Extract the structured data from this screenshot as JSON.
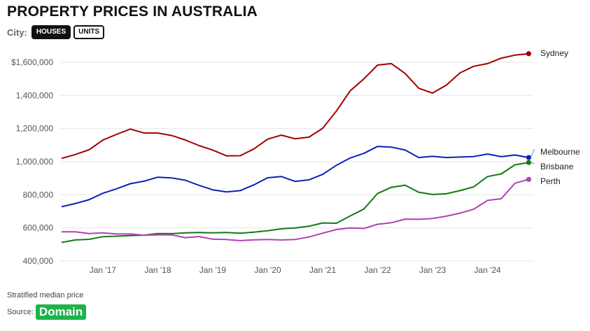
{
  "header": {
    "title": "PROPERTY PRICES IN AUSTRALIA",
    "city_label": "City:",
    "toggles": [
      {
        "label": "HOUSES",
        "active": true
      },
      {
        "label": "UNITS",
        "active": false
      }
    ]
  },
  "footer": {
    "note": "Stratified median price",
    "source_label": "Source:",
    "source_logo": "Domain"
  },
  "colors": {
    "Sydney": "#a10000",
    "Melbourne": "#0a22b8",
    "Brisbane": "#137a13",
    "Perth": "#b041b3",
    "logo": "#1db34a"
  },
  "chart_data": {
    "type": "line",
    "title": "PROPERTY PRICES IN AUSTRALIA",
    "xlabel": "",
    "ylabel": "",
    "note": "Stratified median price",
    "x_start": "2016-04",
    "x_step_months": 3,
    "xlim": [
      "2016-04",
      "2024-11"
    ],
    "ylim": [
      400000,
      1650000
    ],
    "y_ticks": [
      400000,
      600000,
      800000,
      1000000,
      1200000,
      1400000,
      1600000
    ],
    "y_tick_labels": [
      "400,000",
      "600,000",
      "800,000",
      "1,000,000",
      "1,200,000",
      "1,400,000",
      "$1,600,000"
    ],
    "x_tick_labels": [
      "Jan '17",
      "Jan '18",
      "Jan '19",
      "Jan '20",
      "Jan '21",
      "Jan '22",
      "Jan '23",
      "Jan '24"
    ],
    "x_tick_months": [
      "2017-01",
      "2018-01",
      "2019-01",
      "2020-01",
      "2021-01",
      "2022-01",
      "2023-01",
      "2024-01"
    ],
    "gridlines": true,
    "legend": "inline labels at line ends",
    "series": [
      {
        "name": "Sydney",
        "values": [
          1020000,
          1043000,
          1072000,
          1130000,
          1165000,
          1197000,
          1173000,
          1173000,
          1158000,
          1131000,
          1097000,
          1070000,
          1035000,
          1036000,
          1077000,
          1136000,
          1160000,
          1138000,
          1148000,
          1201000,
          1305000,
          1427000,
          1500000,
          1583000,
          1592000,
          1533000,
          1443000,
          1414000,
          1462000,
          1536000,
          1576000,
          1592000,
          1625000,
          1643000,
          1652000
        ]
      },
      {
        "name": "Melbourne",
        "values": [
          728000,
          747000,
          770000,
          809000,
          836000,
          867000,
          882000,
          906000,
          902000,
          888000,
          857000,
          830000,
          817000,
          825000,
          860000,
          903000,
          910000,
          881000,
          890000,
          923000,
          978000,
          1022000,
          1050000,
          1092000,
          1088000,
          1070000,
          1025000,
          1032000,
          1025000,
          1028000,
          1031000,
          1046000,
          1030000,
          1040000,
          1025000
        ]
      },
      {
        "name": "Brisbane",
        "values": [
          512000,
          527000,
          531000,
          547000,
          550000,
          554000,
          556000,
          566000,
          565000,
          570000,
          572000,
          570000,
          572000,
          568000,
          574000,
          583000,
          595000,
          600000,
          610000,
          630000,
          628000,
          672000,
          714000,
          808000,
          845000,
          858000,
          815000,
          802000,
          806000,
          825000,
          848000,
          910000,
          926000,
          981000,
          995000
        ]
      },
      {
        "name": "Perth",
        "values": [
          576000,
          576000,
          566000,
          570000,
          563000,
          563000,
          556000,
          558000,
          558000,
          541000,
          548000,
          532000,
          530000,
          523000,
          528000,
          530000,
          527000,
          530000,
          545000,
          568000,
          590000,
          600000,
          597000,
          622000,
          631000,
          653000,
          652000,
          657000,
          671000,
          689000,
          713000,
          766000,
          776000,
          870000,
          893000
        ]
      }
    ]
  }
}
